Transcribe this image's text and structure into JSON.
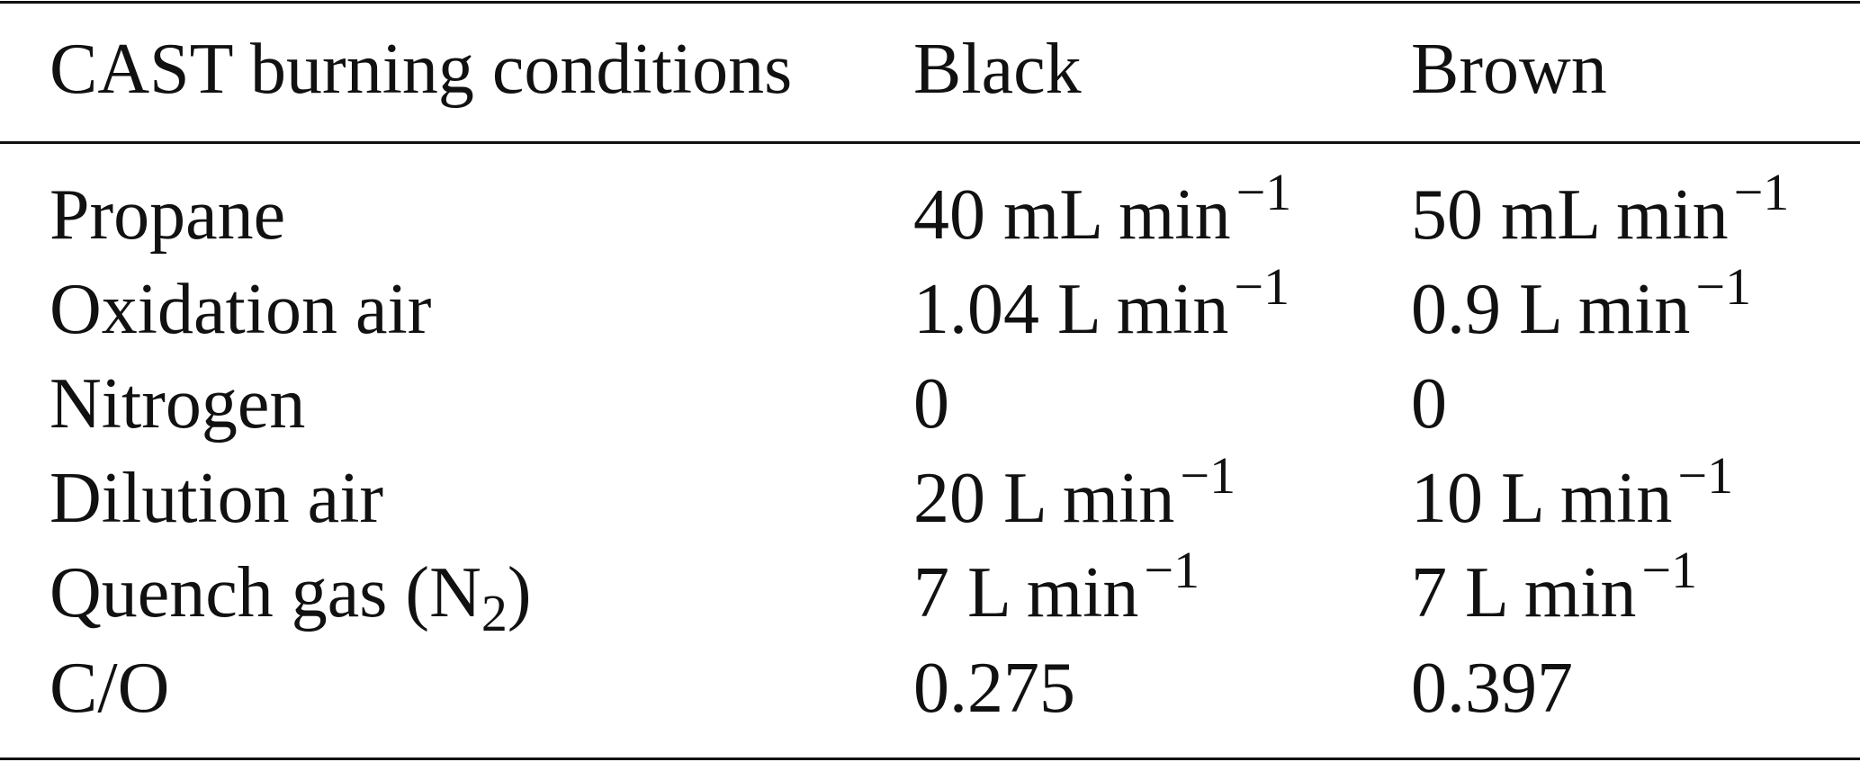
{
  "table": {
    "header": [
      "CAST burning conditions",
      "Black",
      "Brown"
    ],
    "rows": [
      [
        "Propane",
        {
          "base": "40 mL min",
          "sup": "−1"
        },
        {
          "base": "50 mL min",
          "sup": "−1"
        }
      ],
      [
        "Oxidation air",
        {
          "base": "1.04 L min",
          "sup": "−1"
        },
        {
          "base": "0.9 L min",
          "sup": "−1"
        }
      ],
      [
        "Nitrogen",
        "0",
        "0"
      ],
      [
        "Dilution air",
        {
          "base": "20 L min",
          "sup": "−1"
        },
        {
          "base": "10 L min",
          "sup": "−1"
        }
      ],
      [
        {
          "base": "Quench gas (N",
          "sub": "2",
          "after": ")"
        },
        {
          "base": "7 L min",
          "sup": "−1"
        },
        {
          "base": "7 L min",
          "sup": "−1"
        }
      ],
      [
        "C/O",
        "0.275",
        "0.397"
      ]
    ]
  }
}
